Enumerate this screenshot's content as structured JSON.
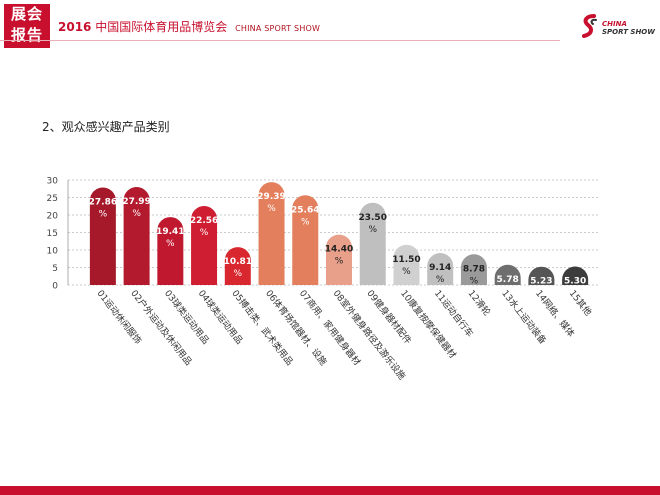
{
  "header": {
    "badge_line1": "展会",
    "badge_line2": "报告",
    "year": "2016",
    "title": "中国国际体育用品博览会",
    "title_en": "CHINA SPORT SHOW",
    "logo_line1": "CHINA",
    "logo_line2": "SPORT SHOW"
  },
  "section_title": "2、观众感兴趣产品类别",
  "colors": {
    "accent": "#c8102e",
    "bars": [
      "#a5192b",
      "#b31a2e",
      "#c0192f",
      "#cf1d31",
      "#d9272f",
      "#e37f5c",
      "#e37f5c",
      "#e8a08a",
      "#bfbfbf",
      "#d0d0d0",
      "#c0c0c0",
      "#9a9a9a",
      "#6e6e6e",
      "#555555",
      "#3c3c3c"
    ]
  },
  "chart_data": {
    "type": "bar",
    "title": "",
    "xlabel": "",
    "ylabel": "",
    "ylim": [
      0,
      30
    ],
    "yticks": [
      0,
      5,
      10,
      15,
      20,
      25,
      30
    ],
    "grid": true,
    "categories": [
      "01运动休闲服饰",
      "02户外运动及休闲用品",
      "03球类运动用品",
      "04球类运动用品",
      "05搏击类、武术类用品",
      "06体育场馆器材、设施",
      "07商用、家用健身器材",
      "08室外健身路径及游乐设施",
      "09健身器材配件",
      "10康复按摩保健器材",
      "11运动自行车",
      "12滑轮",
      "13水上运动装备",
      "14网络、媒体",
      "15其他"
    ],
    "values": [
      27.86,
      27.99,
      19.41,
      22.56,
      10.81,
      29.39,
      25.64,
      14.4,
      23.5,
      11.5,
      9.14,
      8.78,
      5.78,
      5.23,
      5.3
    ],
    "value_labels": [
      "27.86",
      "27.99",
      "19.41",
      "22.56",
      "10.81",
      "29.39",
      "25.64",
      "14.40",
      "23.50",
      "11.50",
      "9.14",
      "8.78",
      "5.78",
      "5.23",
      "5.30"
    ],
    "value_unit": "%"
  }
}
